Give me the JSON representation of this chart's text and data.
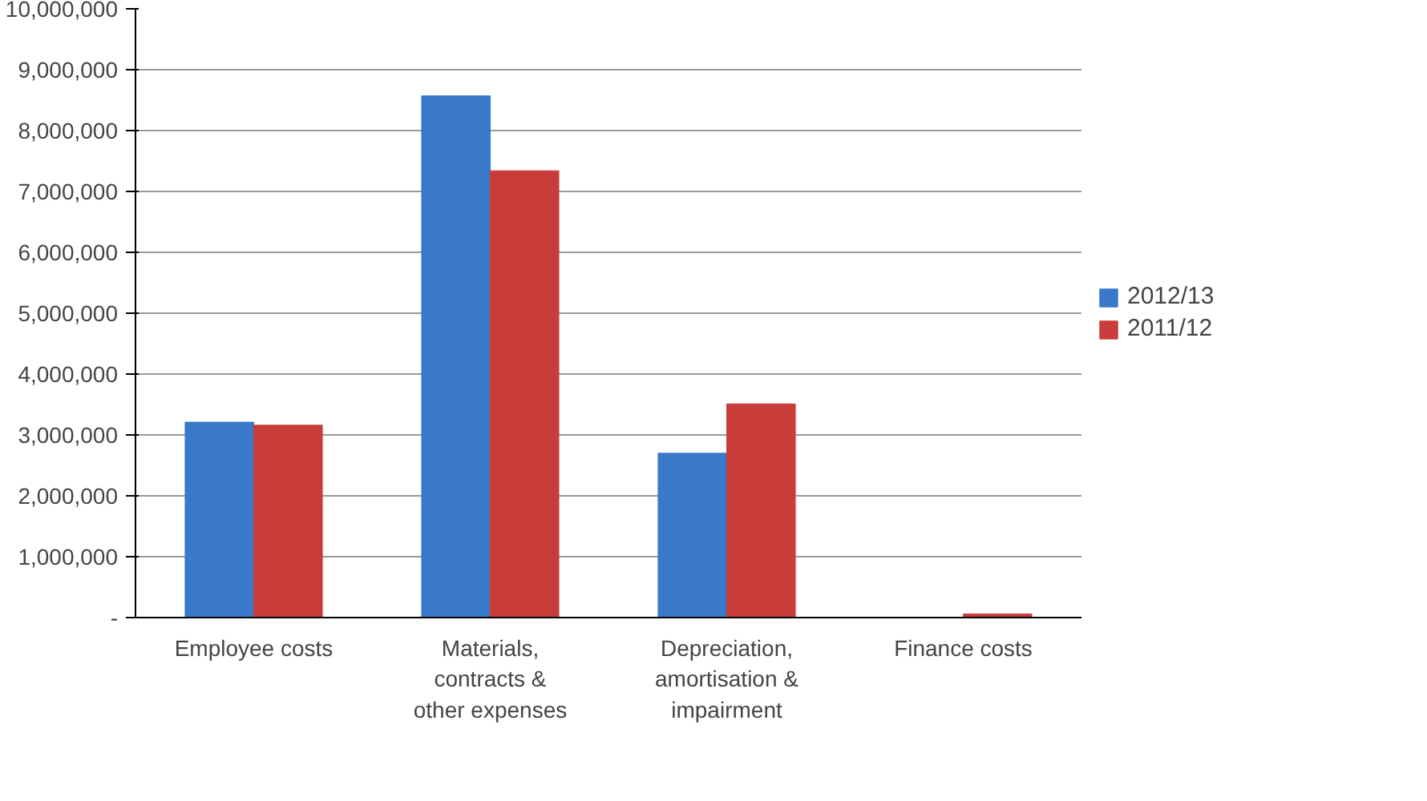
{
  "chart_data": {
    "type": "bar",
    "categories": [
      "Employee costs",
      "Materials, contracts & other expenses",
      "Depreciation, amortisation & impairment",
      "Finance costs"
    ],
    "series": [
      {
        "name": "2012/13",
        "color": "#3a78c9",
        "values": [
          3210000,
          8570000,
          2700000,
          0
        ]
      },
      {
        "name": "2011/12",
        "color": "#c83c3a",
        "values": [
          3160000,
          7340000,
          3510000,
          60000
        ]
      }
    ],
    "ylim": [
      0,
      10000000
    ],
    "yticks": [
      {
        "value": 0,
        "label": "-"
      },
      {
        "value": 1000000,
        "label": "1,000,000"
      },
      {
        "value": 2000000,
        "label": "2,000,000"
      },
      {
        "value": 3000000,
        "label": "3,000,000"
      },
      {
        "value": 4000000,
        "label": "4,000,000"
      },
      {
        "value": 5000000,
        "label": "5,000,000"
      },
      {
        "value": 6000000,
        "label": "6,000,000"
      },
      {
        "value": 7000000,
        "label": "7,000,000"
      },
      {
        "value": 8000000,
        "label": "8,000,000"
      },
      {
        "value": 9000000,
        "label": "9,000,000"
      },
      {
        "value": 10000000,
        "label": "10,000,000"
      }
    ],
    "grid": "y",
    "legend": "right"
  }
}
